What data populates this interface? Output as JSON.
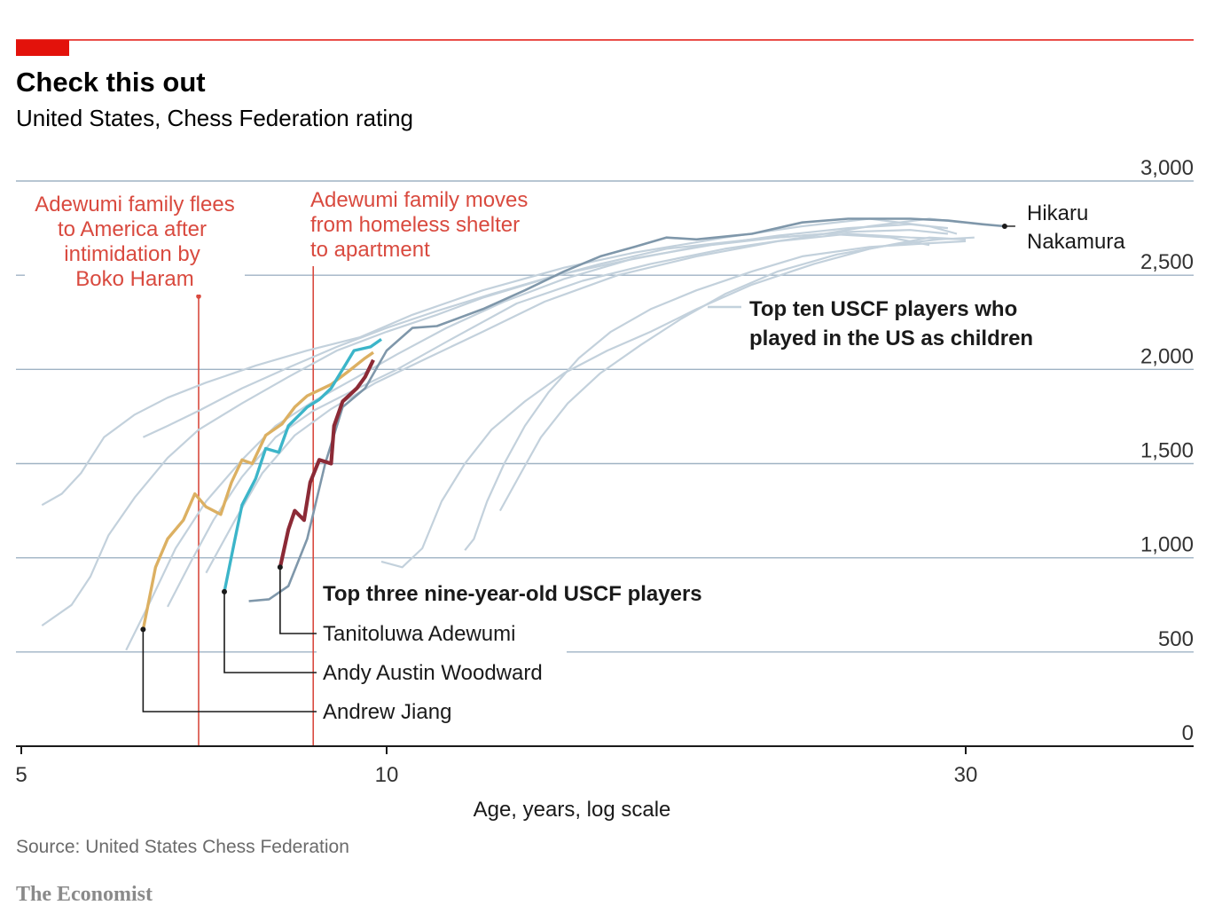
{
  "header": {
    "title": "Check this out",
    "subtitle": "United States, Chess Federation rating"
  },
  "footer": {
    "source": "Source: United States Chess Federation",
    "brand": "The Economist"
  },
  "colors": {
    "accent": "#e3120b",
    "annotation": "#d94a3f",
    "grid": "#9fb3c4",
    "others": "#c3d1dc",
    "nakamura": "#7f97aa",
    "adewumi": "#8c2a36",
    "woodward": "#3cb5c9",
    "jiang": "#dcb062"
  },
  "annotations": {
    "flees": [
      "Adewumi family flees",
      "to America after",
      "intimidation by",
      "Boko Haram"
    ],
    "moves": [
      "Adewumi family moves",
      "from homeless shelter",
      "to apartment"
    ],
    "others_legend": [
      "Top ten USCF players who",
      "played in the US as children"
    ],
    "group_label": "Top three nine-year-old USCF players",
    "nakamura": [
      "Hikaru",
      "Nakamura"
    ]
  },
  "chart_data": {
    "type": "line",
    "xlabel": "Age, years, log scale",
    "ylabel": "",
    "x_scale": "log",
    "xlim": [
      5,
      40
    ],
    "ylim": [
      0,
      3000
    ],
    "x_ticks": [
      {
        "value": 5,
        "label": "5"
      },
      {
        "value": 10,
        "label": "10"
      },
      {
        "value": 30,
        "label": "30"
      }
    ],
    "y_ticks": [
      {
        "value": 0,
        "label": "0"
      },
      {
        "value": 500,
        "label": "500"
      },
      {
        "value": 1000,
        "label": "1,000"
      },
      {
        "value": 1500,
        "label": "1,500"
      },
      {
        "value": 2000,
        "label": "2,000"
      },
      {
        "value": 2500,
        "label": "2,500"
      },
      {
        "value": 3000,
        "label": "3,000"
      }
    ],
    "grid": true,
    "events": [
      {
        "age": 7.0,
        "label": "Adewumi family flees to America after intimidation by Boko Haram"
      },
      {
        "age": 8.7,
        "label": "Adewumi family moves from homeless shelter to apartment"
      }
    ],
    "series": [
      {
        "name": "Tanitoluwa Adewumi",
        "group": "Top three nine-year-old USCF players",
        "points": [
          [
            8.17,
            950
          ],
          [
            8.3,
            1150
          ],
          [
            8.4,
            1250
          ],
          [
            8.55,
            1200
          ],
          [
            8.65,
            1400
          ],
          [
            8.8,
            1520
          ],
          [
            9.0,
            1500
          ],
          [
            9.05,
            1700
          ],
          [
            9.2,
            1830
          ],
          [
            9.45,
            1900
          ],
          [
            9.6,
            1960
          ],
          [
            9.75,
            2050
          ]
        ]
      },
      {
        "name": "Andy Austin Woodward",
        "group": "Top three nine-year-old USCF players",
        "points": [
          [
            7.35,
            820
          ],
          [
            7.5,
            1100
          ],
          [
            7.6,
            1280
          ],
          [
            7.8,
            1420
          ],
          [
            7.95,
            1580
          ],
          [
            8.15,
            1560
          ],
          [
            8.3,
            1700
          ],
          [
            8.6,
            1800
          ],
          [
            8.8,
            1840
          ],
          [
            9.0,
            1900
          ],
          [
            9.2,
            2000
          ],
          [
            9.4,
            2100
          ],
          [
            9.7,
            2120
          ],
          [
            9.9,
            2160
          ]
        ]
      },
      {
        "name": "Andrew Jiang",
        "group": "Top three nine-year-old USCF players",
        "points": [
          [
            6.3,
            620
          ],
          [
            6.45,
            950
          ],
          [
            6.6,
            1100
          ],
          [
            6.8,
            1200
          ],
          [
            6.95,
            1340
          ],
          [
            7.1,
            1270
          ],
          [
            7.3,
            1230
          ],
          [
            7.45,
            1400
          ],
          [
            7.6,
            1520
          ],
          [
            7.75,
            1500
          ],
          [
            7.95,
            1650
          ],
          [
            8.2,
            1710
          ],
          [
            8.4,
            1800
          ],
          [
            8.6,
            1860
          ],
          [
            9.0,
            1920
          ],
          [
            9.3,
            1990
          ],
          [
            9.6,
            2060
          ],
          [
            9.75,
            2090
          ]
        ]
      },
      {
        "name": "Hikaru Nakamura",
        "group": "Top ten USCF players who played in the US as children",
        "points": [
          [
            7.7,
            770
          ],
          [
            8.0,
            780
          ],
          [
            8.3,
            850
          ],
          [
            8.6,
            1100
          ],
          [
            8.9,
            1500
          ],
          [
            9.2,
            1800
          ],
          [
            9.6,
            1900
          ],
          [
            10.0,
            2100
          ],
          [
            10.5,
            2220
          ],
          [
            11.0,
            2230
          ],
          [
            12.0,
            2320
          ],
          [
            13.0,
            2420
          ],
          [
            14.0,
            2520
          ],
          [
            15.0,
            2600
          ],
          [
            16.0,
            2650
          ],
          [
            17.0,
            2700
          ],
          [
            18.0,
            2690
          ],
          [
            20.0,
            2720
          ],
          [
            22.0,
            2780
          ],
          [
            24.0,
            2800
          ],
          [
            27.0,
            2800
          ],
          [
            29.0,
            2790
          ],
          [
            31.0,
            2770
          ],
          [
            32.3,
            2760
          ]
        ]
      },
      {
        "points": [
          [
            5.2,
            640
          ],
          [
            5.5,
            750
          ],
          [
            5.7,
            900
          ],
          [
            5.9,
            1120
          ],
          [
            6.2,
            1320
          ],
          [
            6.6,
            1530
          ],
          [
            7.0,
            1680
          ],
          [
            7.6,
            1820
          ],
          [
            8.3,
            1960
          ],
          [
            9.1,
            2100
          ],
          [
            10.0,
            2200
          ],
          [
            11.0,
            2290
          ],
          [
            12.0,
            2380
          ],
          [
            13.5,
            2480
          ],
          [
            15.0,
            2560
          ],
          [
            17.0,
            2640
          ],
          [
            20.0,
            2690
          ],
          [
            23.0,
            2720
          ],
          [
            26.0,
            2700
          ],
          [
            28.0,
            2660
          ]
        ]
      },
      {
        "points": [
          [
            5.2,
            1280
          ],
          [
            5.4,
            1340
          ],
          [
            5.6,
            1450
          ],
          [
            5.85,
            1640
          ],
          [
            6.2,
            1760
          ],
          [
            6.6,
            1850
          ],
          [
            7.1,
            1930
          ],
          [
            7.8,
            2020
          ],
          [
            8.6,
            2100
          ],
          [
            9.5,
            2170
          ],
          [
            10.5,
            2290
          ],
          [
            12.0,
            2420
          ],
          [
            14.0,
            2540
          ],
          [
            16.0,
            2620
          ],
          [
            19.0,
            2700
          ],
          [
            22.0,
            2760
          ],
          [
            25.0,
            2800
          ],
          [
            28.0,
            2760
          ],
          [
            29.5,
            2720
          ]
        ]
      },
      {
        "points": [
          [
            6.1,
            510
          ],
          [
            6.4,
            780
          ],
          [
            6.7,
            1050
          ],
          [
            7.1,
            1300
          ],
          [
            7.6,
            1520
          ],
          [
            8.1,
            1700
          ],
          [
            8.7,
            1830
          ],
          [
            9.4,
            1950
          ],
          [
            10.2,
            2080
          ],
          [
            11.2,
            2220
          ],
          [
            12.5,
            2360
          ],
          [
            14.0,
            2480
          ],
          [
            16.0,
            2590
          ],
          [
            18.5,
            2660
          ],
          [
            21.0,
            2700
          ],
          [
            24.0,
            2730
          ],
          [
            27.0,
            2740
          ],
          [
            29.0,
            2720
          ]
        ]
      },
      {
        "points": [
          [
            6.6,
            740
          ],
          [
            6.9,
            980
          ],
          [
            7.2,
            1200
          ],
          [
            7.6,
            1430
          ],
          [
            8.1,
            1640
          ],
          [
            8.7,
            1780
          ],
          [
            9.4,
            1890
          ],
          [
            10.2,
            2000
          ],
          [
            11.3,
            2160
          ],
          [
            12.8,
            2350
          ],
          [
            14.5,
            2470
          ],
          [
            16.5,
            2560
          ],
          [
            19.0,
            2640
          ],
          [
            22.0,
            2700
          ],
          [
            25.0,
            2760
          ],
          [
            28.0,
            2800
          ],
          [
            29.8,
            2780
          ]
        ]
      },
      {
        "points": [
          [
            7.1,
            920
          ],
          [
            7.5,
            1200
          ],
          [
            7.9,
            1450
          ],
          [
            8.4,
            1650
          ],
          [
            9.0,
            1790
          ],
          [
            9.8,
            1930
          ],
          [
            10.8,
            2060
          ],
          [
            12.0,
            2200
          ],
          [
            13.5,
            2360
          ],
          [
            15.5,
            2500
          ],
          [
            18.0,
            2600
          ],
          [
            21.0,
            2680
          ],
          [
            24.0,
            2720
          ],
          [
            27.0,
            2700
          ],
          [
            30.0,
            2690
          ]
        ]
      },
      {
        "points": [
          [
            9.9,
            980
          ],
          [
            10.3,
            950
          ],
          [
            10.7,
            1050
          ],
          [
            11.1,
            1300
          ],
          [
            11.6,
            1500
          ],
          [
            12.2,
            1680
          ],
          [
            13.0,
            1830
          ],
          [
            14.0,
            1980
          ],
          [
            15.2,
            2100
          ],
          [
            16.5,
            2200
          ],
          [
            18.0,
            2320
          ],
          [
            20.0,
            2450
          ],
          [
            22.5,
            2560
          ],
          [
            25.0,
            2640
          ],
          [
            28.0,
            2700
          ],
          [
            30.0,
            2690
          ]
        ]
      },
      {
        "points": [
          [
            11.6,
            1040
          ],
          [
            11.8,
            1100
          ],
          [
            12.1,
            1300
          ],
          [
            12.5,
            1500
          ],
          [
            13.0,
            1700
          ],
          [
            13.6,
            1880
          ],
          [
            14.4,
            2060
          ],
          [
            15.3,
            2200
          ],
          [
            16.5,
            2320
          ],
          [
            18.0,
            2420
          ],
          [
            20.0,
            2520
          ],
          [
            22.0,
            2600
          ],
          [
            25.0,
            2650
          ],
          [
            28.0,
            2670
          ],
          [
            30.0,
            2680
          ]
        ]
      },
      {
        "points": [
          [
            12.4,
            1250
          ],
          [
            12.9,
            1450
          ],
          [
            13.4,
            1640
          ],
          [
            14.1,
            1820
          ],
          [
            15.0,
            1980
          ],
          [
            16.2,
            2130
          ],
          [
            17.5,
            2270
          ],
          [
            19.0,
            2400
          ],
          [
            21.0,
            2520
          ],
          [
            23.5,
            2610
          ],
          [
            26.0,
            2660
          ],
          [
            28.5,
            2690
          ],
          [
            30.5,
            2700
          ]
        ]
      },
      {
        "points": [
          [
            6.3,
            1640
          ],
          [
            6.6,
            1700
          ],
          [
            7.0,
            1780
          ],
          [
            7.6,
            1900
          ],
          [
            8.3,
            2010
          ],
          [
            9.1,
            2120
          ],
          [
            10.0,
            2220
          ],
          [
            11.0,
            2310
          ],
          [
            12.2,
            2400
          ],
          [
            13.8,
            2500
          ],
          [
            15.8,
            2580
          ],
          [
            18.0,
            2650
          ],
          [
            21.0,
            2710
          ],
          [
            24.0,
            2750
          ],
          [
            27.0,
            2770
          ],
          [
            29.0,
            2750
          ]
        ]
      }
    ]
  }
}
